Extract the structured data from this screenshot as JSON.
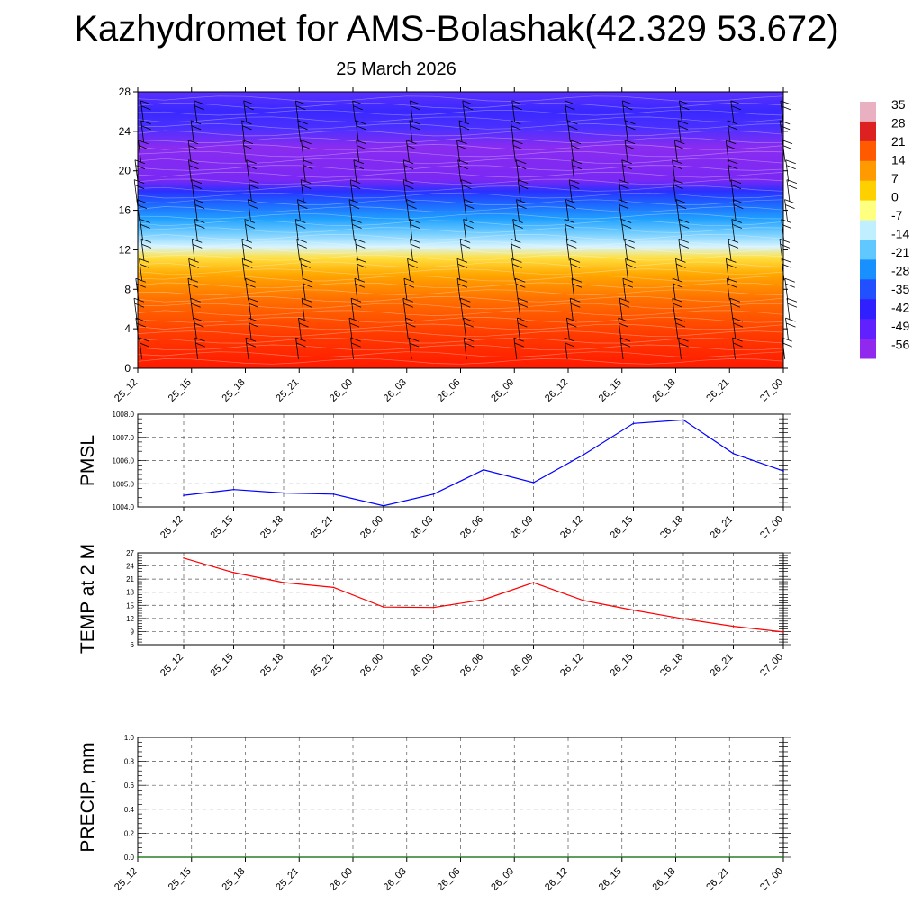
{
  "title": "Kazhydromet for AMS-Bolashak(42.329 53.672)",
  "subtitle": "25 March 2026",
  "colors": {
    "pmsl_line": "#0000ff",
    "temp_line": "#ff0000",
    "precip_line": "#006400",
    "grid": "#555555",
    "colorbar": [
      "#e8b0c0",
      "#dd2020",
      "#ff5a00",
      "#ff9a00",
      "#ffd000",
      "#ffff80",
      "#c0f0ff",
      "#60c8ff",
      "#1890ff",
      "#2050ff",
      "#3020ff",
      "#6020ff",
      "#9028ee"
    ]
  },
  "chart_data": [
    {
      "type": "heatmap",
      "title": "",
      "xlabel": "",
      "ylabel": "",
      "x": [
        "25_12",
        "25_15",
        "25_18",
        "25_21",
        "26_00",
        "26_03",
        "26_06",
        "26_09",
        "26_12",
        "26_15",
        "26_18",
        "26_21",
        "27_00"
      ],
      "yticks": [
        0,
        4,
        8,
        12,
        16,
        20,
        24,
        28
      ],
      "ylim": [
        0,
        28
      ],
      "colorbar_labels": [
        "35",
        "28",
        "21",
        "14",
        "7",
        "0",
        "-7",
        "-14",
        "-21",
        "-28",
        "-35",
        "-42",
        "-49",
        "-56"
      ],
      "overlay": "wind barbs",
      "legend_position": "right"
    },
    {
      "type": "line",
      "ylabel": "PMSL",
      "x": [
        "25_12",
        "25_15",
        "25_18",
        "25_21",
        "26_00",
        "26_03",
        "26_06",
        "26_09",
        "26_12",
        "26_15",
        "26_18",
        "26_21",
        "27_00"
      ],
      "series": [
        {
          "values": [
            1004.5,
            1004.75,
            1004.6,
            1004.55,
            1004.05,
            1004.55,
            1005.6,
            1005.05,
            1006.25,
            1007.6,
            1007.75,
            1006.3,
            1005.55
          ]
        }
      ],
      "ylim": [
        1004.0,
        1008.0
      ],
      "yticks": [
        "1004.0",
        "1005.0",
        "1006.0",
        "1007.0",
        "1008.0"
      ],
      "grid": true
    },
    {
      "type": "line",
      "ylabel": "TEMP at 2 M",
      "x": [
        "25_12",
        "25_15",
        "25_18",
        "25_21",
        "26_00",
        "26_03",
        "26_06",
        "26_09",
        "26_12",
        "26_15",
        "26_18",
        "26_21",
        "27_00"
      ],
      "series": [
        {
          "values": [
            25.8,
            22.5,
            20.2,
            19.1,
            14.6,
            14.5,
            16.3,
            20.2,
            16.1,
            13.9,
            11.9,
            10.2,
            8.9
          ]
        }
      ],
      "ylim": [
        6,
        27
      ],
      "yticks": [
        "6",
        "9",
        "12",
        "15",
        "18",
        "21",
        "24",
        "27"
      ],
      "grid": true
    },
    {
      "type": "line",
      "ylabel": "PRECIP, mm",
      "x": [
        "25_12",
        "25_15",
        "25_18",
        "25_21",
        "26_00",
        "26_03",
        "26_06",
        "26_09",
        "26_12",
        "26_15",
        "26_18",
        "26_21",
        "27_00"
      ],
      "series": [
        {
          "values": [
            0,
            0,
            0,
            0,
            0,
            0,
            0,
            0,
            0,
            0,
            0,
            0,
            0
          ]
        }
      ],
      "ylim": [
        0.0,
        1.0
      ],
      "yticks": [
        "0.0",
        "0.2",
        "0.4",
        "0.6",
        "0.8",
        "1.0"
      ],
      "grid": true
    }
  ]
}
